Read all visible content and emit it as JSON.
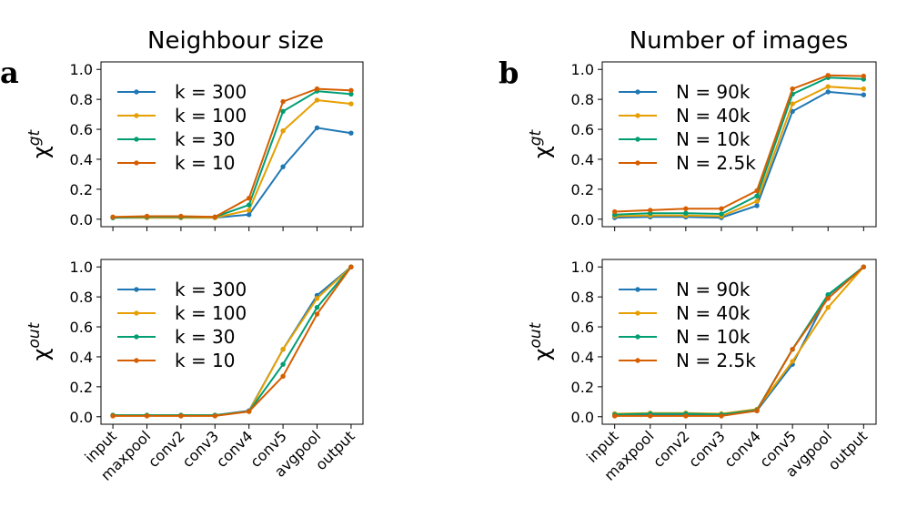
{
  "figure": {
    "panel_a_letter": "a",
    "panel_b_letter": "b",
    "panel_a_title": "Neighbour size",
    "panel_b_title": "Number of images"
  },
  "colors": {
    "series_1": "#1f77b4",
    "series_2": "#e69f00",
    "series_3": "#009e73",
    "series_4": "#d55e00"
  },
  "chart_data": [
    {
      "id": "a_top",
      "type": "line",
      "title": "Neighbour size",
      "ylabel_base": "χ",
      "ylabel_sup": "gt",
      "xlabel": "",
      "ylim": [
        0.0,
        1.0
      ],
      "yticks": [
        "0.0",
        "0.2",
        "0.4",
        "0.6",
        "0.8",
        "1.0"
      ],
      "categories": [
        "input",
        "maxpool",
        "conv2",
        "conv3",
        "conv4",
        "conv5",
        "avgpool",
        "output"
      ],
      "legend_position": "upper-left",
      "series": [
        {
          "name": "k = 300",
          "values": [
            0.01,
            0.01,
            0.01,
            0.01,
            0.03,
            0.35,
            0.61,
            0.575
          ]
        },
        {
          "name": "k = 100",
          "values": [
            0.01,
            0.01,
            0.01,
            0.01,
            0.06,
            0.59,
            0.795,
            0.77
          ]
        },
        {
          "name": "k = 30",
          "values": [
            0.01,
            0.015,
            0.015,
            0.015,
            0.095,
            0.72,
            0.855,
            0.835
          ]
        },
        {
          "name": "k = 10",
          "values": [
            0.015,
            0.02,
            0.02,
            0.015,
            0.14,
            0.785,
            0.87,
            0.86
          ]
        }
      ]
    },
    {
      "id": "a_bottom",
      "type": "line",
      "ylabel_base": "χ",
      "ylabel_sup": "out",
      "xlabel": "",
      "ylim": [
        0.0,
        1.0
      ],
      "yticks": [
        "0.0",
        "0.2",
        "0.4",
        "0.6",
        "0.8",
        "1.0"
      ],
      "categories": [
        "input",
        "maxpool",
        "conv2",
        "conv3",
        "conv4",
        "conv5",
        "avgpool",
        "output"
      ],
      "legend_position": "upper-left",
      "series": [
        {
          "name": "k = 300",
          "values": [
            0.01,
            0.01,
            0.01,
            0.01,
            0.04,
            0.45,
            0.81,
            1.0
          ]
        },
        {
          "name": "k = 100",
          "values": [
            0.01,
            0.01,
            0.01,
            0.01,
            0.035,
            0.45,
            0.79,
            1.0
          ]
        },
        {
          "name": "k = 30",
          "values": [
            0.01,
            0.01,
            0.01,
            0.01,
            0.035,
            0.35,
            0.73,
            1.0
          ]
        },
        {
          "name": "k = 10",
          "values": [
            0.005,
            0.005,
            0.005,
            0.005,
            0.035,
            0.27,
            0.685,
            1.0
          ]
        }
      ]
    },
    {
      "id": "b_top",
      "type": "line",
      "title": "Number of images",
      "ylabel_base": "χ",
      "ylabel_sup": "gt",
      "xlabel": "",
      "ylim": [
        0.0,
        1.0
      ],
      "yticks": [
        "0.0",
        "0.2",
        "0.4",
        "0.6",
        "0.8",
        "1.0"
      ],
      "categories": [
        "input",
        "maxpool",
        "conv2",
        "conv3",
        "conv4",
        "conv5",
        "avgpool",
        "output"
      ],
      "legend_position": "upper-left",
      "series": [
        {
          "name": "N = 90k",
          "values": [
            0.01,
            0.015,
            0.015,
            0.01,
            0.09,
            0.72,
            0.85,
            0.83
          ]
        },
        {
          "name": "N = 40k",
          "values": [
            0.02,
            0.025,
            0.025,
            0.02,
            0.12,
            0.77,
            0.885,
            0.87
          ]
        },
        {
          "name": "N = 10k",
          "values": [
            0.03,
            0.04,
            0.04,
            0.035,
            0.155,
            0.835,
            0.945,
            0.935
          ]
        },
        {
          "name": "N = 2.5k",
          "values": [
            0.05,
            0.06,
            0.07,
            0.07,
            0.19,
            0.87,
            0.96,
            0.955
          ]
        }
      ]
    },
    {
      "id": "b_bottom",
      "type": "line",
      "ylabel_base": "χ",
      "ylabel_sup": "out",
      "xlabel": "",
      "ylim": [
        0.0,
        1.0
      ],
      "yticks": [
        "0.0",
        "0.2",
        "0.4",
        "0.6",
        "0.8",
        "1.0"
      ],
      "categories": [
        "input",
        "maxpool",
        "conv2",
        "conv3",
        "conv4",
        "conv5",
        "avgpool",
        "output"
      ],
      "legend_position": "upper-left",
      "series": [
        {
          "name": "N = 90k",
          "values": [
            0.01,
            0.01,
            0.01,
            0.01,
            0.04,
            0.35,
            0.81,
            1.0
          ]
        },
        {
          "name": "N = 40k",
          "values": [
            0.02,
            0.025,
            0.025,
            0.02,
            0.05,
            0.37,
            0.73,
            1.0
          ]
        },
        {
          "name": "N = 10k",
          "values": [
            0.015,
            0.02,
            0.02,
            0.015,
            0.045,
            0.45,
            0.815,
            1.0
          ]
        },
        {
          "name": "N = 2.5k",
          "values": [
            0.005,
            0.005,
            0.005,
            0.005,
            0.04,
            0.45,
            0.79,
            1.0
          ]
        }
      ]
    }
  ]
}
